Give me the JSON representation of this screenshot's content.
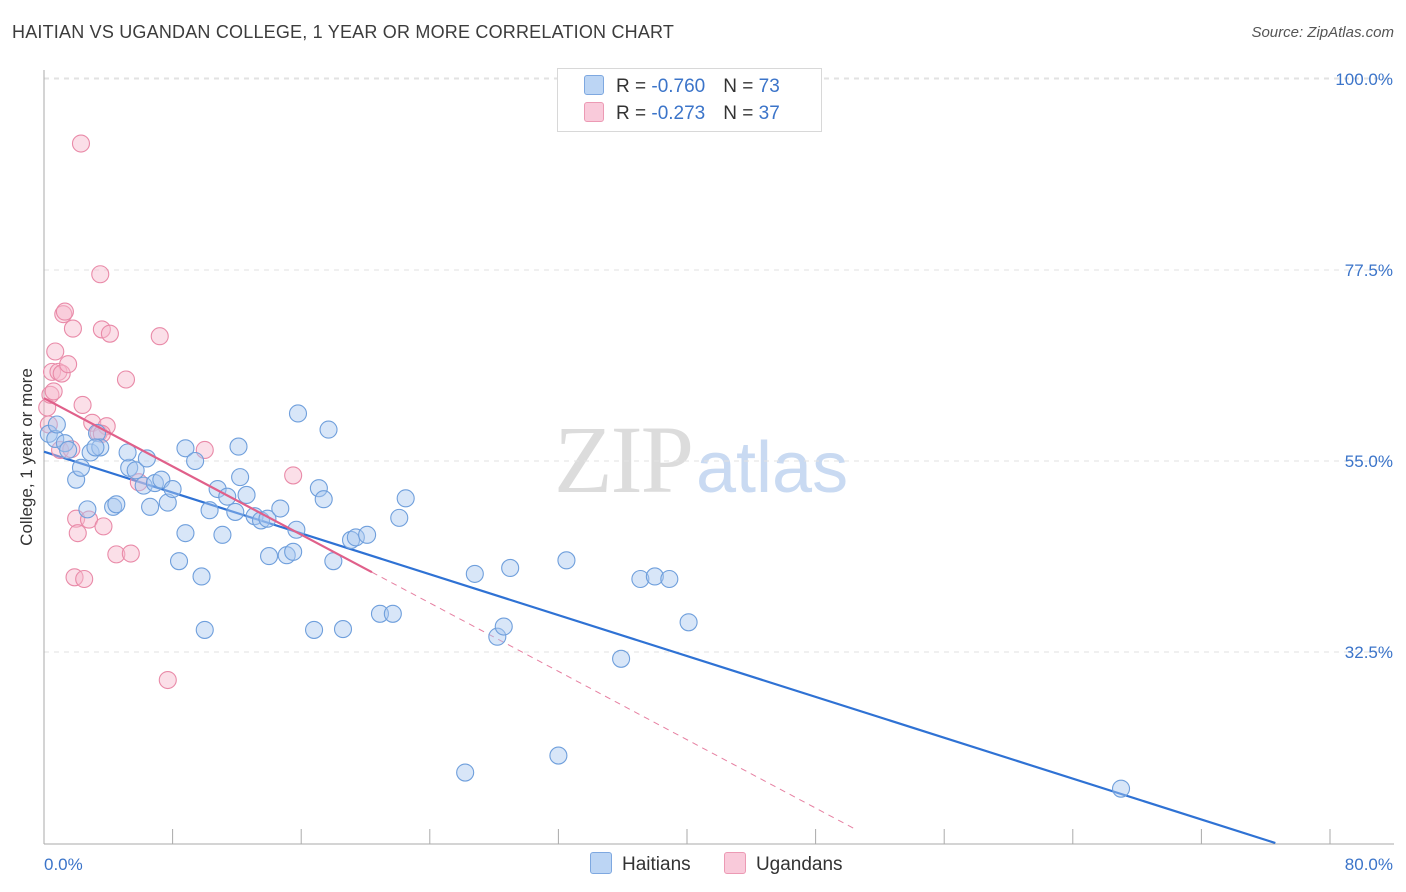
{
  "title": "HAITIAN VS UGANDAN COLLEGE, 1 YEAR OR MORE CORRELATION CHART",
  "source": "Source: ZipAtlas.com",
  "watermark": {
    "part1": "ZIP",
    "part2": "atlas"
  },
  "colors": {
    "haitians_fill": "#a9c8f0",
    "haitians_stroke": "#6f9fdc",
    "haitians_line": "#2f72d4",
    "ugandans_fill": "#f6b9cc",
    "ugandans_stroke": "#e98aa8",
    "ugandans_line": "#e0608a",
    "tick_label": "#3b74c9",
    "grid": "#e2e2e2"
  },
  "legend": {
    "rows": [
      {
        "r_label": "R = ",
        "r_value": "-0.760",
        "n_label": "N = ",
        "n_value": "73"
      },
      {
        "r_label": "R = ",
        "r_value": "-0.273",
        "n_label": "N = ",
        "n_value": "37"
      }
    ]
  },
  "bottom_legend": {
    "haitians": "Haitians",
    "ugandans": "Ugandans"
  },
  "chart_data": {
    "type": "scatter",
    "title": "HAITIAN VS UGANDAN COLLEGE, 1 YEAR OR MORE CORRELATION CHART",
    "xlabel": "",
    "ylabel": "College, 1 year or more",
    "xlim": [
      0,
      80
    ],
    "ylim": [
      10,
      102
    ],
    "x_tick_labels": [
      "0.0%",
      "80.0%"
    ],
    "y_ticks": [
      32.5,
      55.0,
      77.5,
      100.0
    ],
    "y_tick_labels": [
      "32.5%",
      "55.0%",
      "77.5%",
      "100.0%"
    ],
    "grid": true,
    "legend_position": "top-center",
    "series": [
      {
        "name": "Haitians",
        "r": -0.76,
        "n": 73,
        "trend": {
          "x": [
            0.0,
            76.6
          ],
          "y": [
            56.1,
            10.0
          ]
        },
        "points": [
          [
            0.3,
            58.2
          ],
          [
            0.7,
            57.6
          ],
          [
            1.3,
            57.1
          ],
          [
            1.5,
            56.3
          ],
          [
            2.0,
            52.8
          ],
          [
            2.3,
            54.2
          ],
          [
            2.7,
            49.3
          ],
          [
            2.9,
            56.0
          ],
          [
            3.3,
            58.3
          ],
          [
            3.5,
            56.6
          ],
          [
            4.3,
            49.6
          ],
          [
            4.5,
            49.9
          ],
          [
            5.3,
            54.2
          ],
          [
            5.7,
            53.9
          ],
          [
            5.2,
            56.0
          ],
          [
            6.2,
            52.1
          ],
          [
            6.4,
            55.3
          ],
          [
            6.6,
            49.6
          ],
          [
            6.9,
            52.4
          ],
          [
            7.3,
            52.8
          ],
          [
            7.7,
            50.1
          ],
          [
            8.0,
            51.7
          ],
          [
            8.4,
            43.2
          ],
          [
            8.8,
            46.5
          ],
          [
            8.8,
            56.5
          ],
          [
            9.4,
            55.0
          ],
          [
            9.8,
            41.4
          ],
          [
            10.0,
            35.1
          ],
          [
            10.3,
            49.2
          ],
          [
            10.8,
            51.7
          ],
          [
            11.1,
            46.3
          ],
          [
            11.4,
            50.8
          ],
          [
            11.9,
            49.0
          ],
          [
            12.1,
            56.7
          ],
          [
            12.2,
            53.1
          ],
          [
            12.6,
            51.0
          ],
          [
            13.1,
            48.5
          ],
          [
            13.5,
            48.0
          ],
          [
            13.9,
            48.2
          ],
          [
            14.0,
            43.8
          ],
          [
            14.7,
            49.4
          ],
          [
            15.1,
            43.9
          ],
          [
            15.5,
            44.3
          ],
          [
            15.7,
            46.9
          ],
          [
            15.8,
            60.6
          ],
          [
            16.8,
            35.1
          ],
          [
            17.1,
            51.8
          ],
          [
            17.4,
            50.5
          ],
          [
            17.7,
            58.7
          ],
          [
            18.0,
            43.2
          ],
          [
            18.6,
            35.2
          ],
          [
            19.1,
            45.7
          ],
          [
            19.4,
            46.0
          ],
          [
            20.1,
            46.3
          ],
          [
            20.9,
            37.0
          ],
          [
            21.7,
            37.0
          ],
          [
            22.1,
            48.3
          ],
          [
            22.5,
            50.6
          ],
          [
            26.2,
            18.3
          ],
          [
            26.8,
            41.7
          ],
          [
            28.2,
            34.3
          ],
          [
            28.6,
            35.5
          ],
          [
            29.0,
            42.4
          ],
          [
            32.0,
            20.3
          ],
          [
            32.5,
            43.3
          ],
          [
            35.9,
            31.7
          ],
          [
            37.1,
            41.1
          ],
          [
            38.0,
            41.4
          ],
          [
            38.9,
            41.1
          ],
          [
            40.1,
            36.0
          ],
          [
            67.0,
            16.4
          ],
          [
            0.8,
            59.3
          ],
          [
            3.2,
            56.6
          ]
        ]
      },
      {
        "name": "Ugandans",
        "r": -0.273,
        "n": 37,
        "trend": {
          "x": [
            0.0,
            20.4
          ],
          "y": [
            62.4,
            41.9
          ]
        },
        "trend_dashed": {
          "x": [
            20.4,
            50.4
          ],
          "y": [
            41.9,
            11.7
          ]
        },
        "points": [
          [
            0.2,
            61.3
          ],
          [
            0.3,
            59.3
          ],
          [
            0.4,
            62.8
          ],
          [
            0.6,
            63.2
          ],
          [
            0.5,
            65.5
          ],
          [
            0.7,
            67.9
          ],
          [
            0.9,
            65.5
          ],
          [
            1.0,
            56.3
          ],
          [
            1.1,
            65.3
          ],
          [
            1.2,
            72.3
          ],
          [
            1.3,
            72.6
          ],
          [
            1.5,
            66.4
          ],
          [
            1.7,
            56.4
          ],
          [
            1.8,
            70.6
          ],
          [
            1.9,
            41.3
          ],
          [
            2.0,
            48.2
          ],
          [
            2.1,
            46.5
          ],
          [
            2.4,
            61.6
          ],
          [
            2.3,
            92.4
          ],
          [
            2.5,
            41.1
          ],
          [
            2.8,
            48.1
          ],
          [
            3.0,
            59.5
          ],
          [
            3.4,
            58.3
          ],
          [
            3.5,
            77.0
          ],
          [
            3.6,
            70.5
          ],
          [
            3.9,
            59.1
          ],
          [
            3.6,
            58.2
          ],
          [
            3.7,
            47.3
          ],
          [
            4.1,
            70.0
          ],
          [
            4.5,
            44.0
          ],
          [
            5.1,
            64.6
          ],
          [
            5.4,
            44.1
          ],
          [
            5.9,
            52.5
          ],
          [
            7.2,
            69.7
          ],
          [
            7.7,
            29.2
          ],
          [
            10.0,
            56.3
          ],
          [
            15.5,
            53.3
          ]
        ]
      }
    ]
  }
}
